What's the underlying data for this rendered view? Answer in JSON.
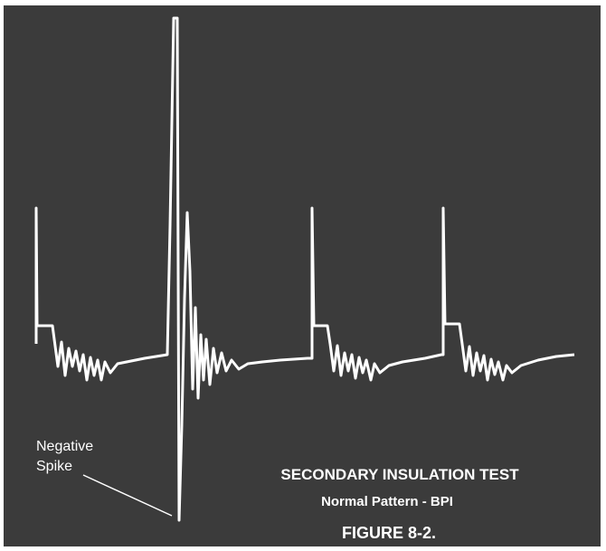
{
  "annotation": {
    "lines": [
      "Negative",
      "Spike"
    ]
  },
  "caption": {
    "title": "SECONDARY INSULATION TEST",
    "subtitle": "Normal Pattern - BPI",
    "figure": "FIGURE 8-2."
  }
}
